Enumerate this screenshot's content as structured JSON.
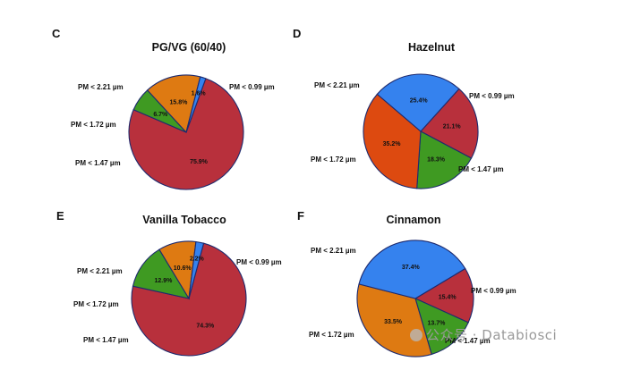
{
  "colors": {
    "pm099": "#b8303c",
    "pm147": "#3f9a22",
    "pm172_orange": "#de7a12",
    "pm172_red": "#dd4a10",
    "pm221": "#3582ee",
    "label_text": "#111111"
  },
  "watermark": {
    "text": "公众号 · Databiosci"
  },
  "chart_data": [
    {
      "panel": "C",
      "type": "pie",
      "title": "PG/VG (60/40)",
      "slices": [
        {
          "label": "PM < 0.99 µm",
          "value": 75.9,
          "value_label": "75.9%",
          "color": "#b8303c"
        },
        {
          "label": "PM < 1.47 µm",
          "value": 6.7,
          "value_label": "6.7%",
          "color": "#3f9a22"
        },
        {
          "label": "PM < 1.72 µm",
          "value": 15.8,
          "value_label": "15.8%",
          "color": "#de7a12"
        },
        {
          "label": "PM < 2.21 µm",
          "value": 1.6,
          "value_label": "1.6%",
          "color": "#3582ee"
        }
      ]
    },
    {
      "panel": "D",
      "type": "pie",
      "title": "Hazelnut",
      "slices": [
        {
          "label": "PM < 0.99 µm",
          "value": 21.1,
          "value_label": "21.1%",
          "color": "#b8303c"
        },
        {
          "label": "PM < 1.47 µm",
          "value": 18.3,
          "value_label": "18.3%",
          "color": "#3f9a22"
        },
        {
          "label": "PM < 1.72 µm",
          "value": 35.2,
          "value_label": "35.2%",
          "color": "#dd4a10"
        },
        {
          "label": "PM < 2.21 µm",
          "value": 25.4,
          "value_label": "25.4%",
          "color": "#3582ee"
        }
      ]
    },
    {
      "panel": "E",
      "type": "pie",
      "title": "Vanilla Tobacco",
      "slices": [
        {
          "label": "PM < 0.99 µm",
          "value": 74.3,
          "value_label": "74.3%",
          "color": "#b8303c"
        },
        {
          "label": "PM < 1.47 µm",
          "value": 12.9,
          "value_label": "12.9%",
          "color": "#3f9a22"
        },
        {
          "label": "PM < 1.72 µm",
          "value": 10.6,
          "value_label": "10.6%",
          "color": "#de7a12"
        },
        {
          "label": "PM < 2.21 µm",
          "value": 2.2,
          "value_label": "2.2%",
          "color": "#3582ee"
        }
      ]
    },
    {
      "panel": "F",
      "type": "pie",
      "title": "Cinnamon",
      "slices": [
        {
          "label": "PM < 0.99 µm",
          "value": 15.4,
          "value_label": "15.4%",
          "color": "#b8303c"
        },
        {
          "label": "PM < 1.47 µm",
          "value": 13.7,
          "value_label": "13.7%",
          "color": "#3f9a22"
        },
        {
          "label": "PM < 1.72 µm",
          "value": 33.5,
          "value_label": "33.5%",
          "color": "#de7a12"
        },
        {
          "label": "PM < 2.21 µm",
          "value": 37.4,
          "value_label": "37.4%",
          "color": "#3582ee"
        }
      ]
    }
  ]
}
